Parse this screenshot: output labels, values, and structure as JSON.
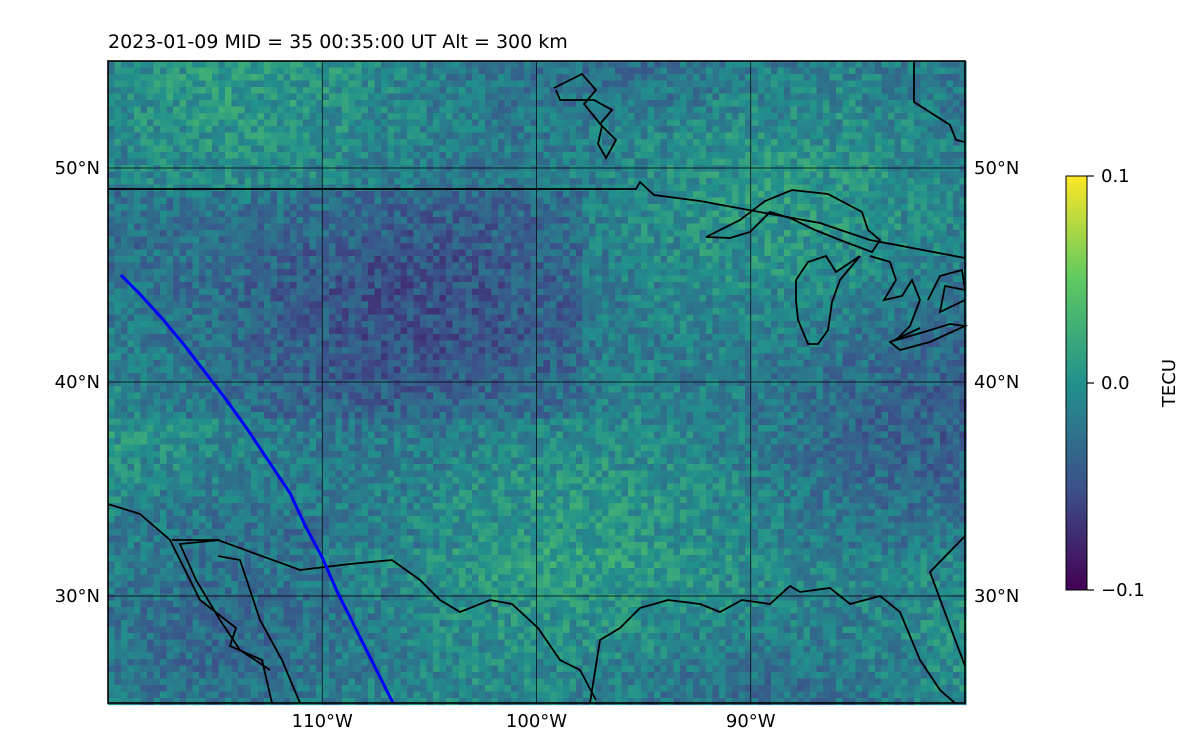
{
  "header": {
    "title": "2023-01-09  MID =  35    00:35:00  UT  Alt = 300 km"
  },
  "map": {
    "type": "heatmap",
    "lon_range": [
      -120,
      -80
    ],
    "lat_range": [
      25,
      55
    ],
    "lon_ticks": [
      {
        "value": -110,
        "label": "110°W"
      },
      {
        "value": -100,
        "label": "100°W"
      },
      {
        "value": -90,
        "label": "90°W"
      }
    ],
    "lat_ticks": [
      {
        "value": 50,
        "label": "50°N"
      },
      {
        "value": 40,
        "label": "40°N"
      },
      {
        "value": 30,
        "label": "30°N"
      }
    ],
    "grid": true,
    "coastline_color": "#000000",
    "track_color": "#0000ff",
    "track_points": [
      [
        -119.4,
        45.0
      ],
      [
        -118.5,
        44.1
      ],
      [
        -117.5,
        43.0
      ],
      [
        -116.5,
        41.8
      ],
      [
        -115.5,
        40.5
      ],
      [
        -114.5,
        39.2
      ],
      [
        -113.5,
        37.8
      ],
      [
        -112.5,
        36.3
      ],
      [
        -111.5,
        34.8
      ],
      [
        -110.8,
        33.3
      ],
      [
        -110.0,
        31.8
      ],
      [
        -109.3,
        30.2
      ],
      [
        -108.5,
        28.6
      ],
      [
        -107.7,
        27.0
      ],
      [
        -106.9,
        25.4
      ],
      [
        -106.7,
        25.0
      ]
    ]
  },
  "colorbar": {
    "label": "TECU",
    "min": -0.1,
    "max": 0.1,
    "ticks": [
      {
        "value": 0.1,
        "label": "0.1"
      },
      {
        "value": 0.0,
        "label": "0.0"
      },
      {
        "value": -0.1,
        "label": "−0.1"
      }
    ],
    "colormap": [
      "#440154",
      "#3b528b",
      "#21918c",
      "#5ec962",
      "#fde725"
    ]
  }
}
